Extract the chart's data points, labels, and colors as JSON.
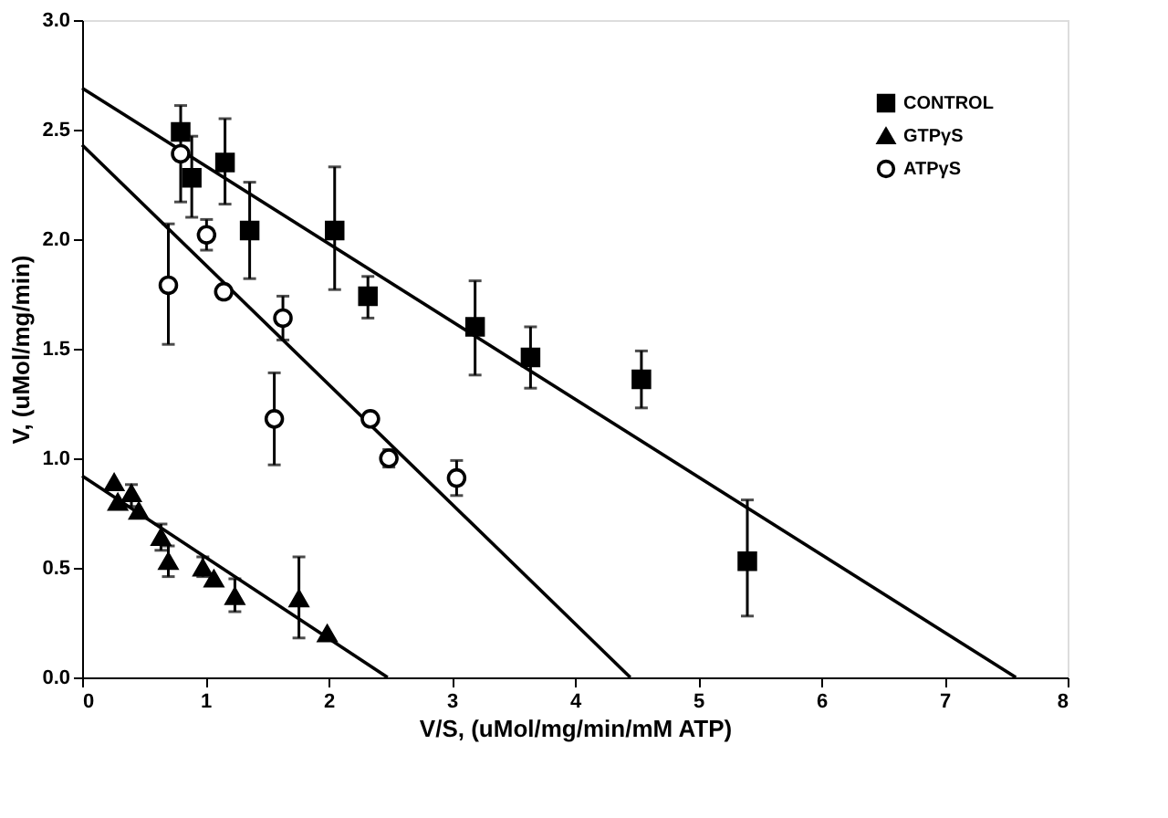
{
  "chart_data": {
    "type": "scatter",
    "xlabel": "V/S,   (uMol/mg/min/mM   ATP)",
    "ylabel": "V,    (uMol/mg/min)",
    "xlim": [
      0,
      8
    ],
    "xticks": [
      0,
      1,
      2,
      3,
      4,
      5,
      6,
      7,
      8
    ],
    "ylim": [
      0,
      3
    ],
    "yticks": [
      {
        "value": 0,
        "label": "0.0"
      },
      {
        "value": 0.5,
        "label": "0.5"
      },
      {
        "value": 1,
        "label": "1.0"
      },
      {
        "value": 1.5,
        "label": "1.5"
      },
      {
        "value": 2,
        "label": "2.0"
      },
      {
        "value": 2.5,
        "label": "2.5"
      },
      {
        "value": 3,
        "label": "3.0"
      }
    ],
    "grid": false,
    "legend": "top right",
    "series": [
      {
        "name": "CONTROL",
        "color": "#000000",
        "marker": "square",
        "x": [
          0.8,
          0.89,
          1.16,
          1.36,
          2.05,
          2.32,
          3.19,
          3.64,
          4.54,
          5.4
        ],
        "values": [
          2.49,
          2.28,
          2.35,
          2.04,
          2.04,
          1.74,
          1.6,
          1.46,
          1.36,
          0.53
        ],
        "errors": [
          [
            2.17,
            2.61
          ],
          [
            2.1,
            2.47
          ],
          [
            2.16,
            2.55
          ],
          [
            1.82,
            2.26
          ],
          [
            1.77,
            2.33
          ],
          [
            1.64,
            1.83
          ],
          [
            1.38,
            1.81
          ],
          [
            1.32,
            1.6
          ],
          [
            1.23,
            1.49
          ],
          [
            0.28,
            0.81
          ]
        ]
      },
      {
        "name": "GTPγS",
        "color": "#000000",
        "marker": "triangle",
        "x": [
          0.26,
          0.29,
          0.4,
          0.46,
          0.64,
          0.7,
          0.98,
          1.07,
          1.24,
          1.76,
          1.99
        ],
        "values": [
          0.89,
          0.8,
          0.84,
          0.76,
          0.64,
          0.53,
          0.5,
          0.45,
          0.37,
          0.36,
          0.2
        ],
        "errors": [
          null,
          null,
          [
            0.78,
            0.88
          ],
          null,
          [
            0.58,
            0.7
          ],
          [
            0.46,
            0.6
          ],
          [
            0.46,
            0.55
          ],
          null,
          [
            0.3,
            0.45
          ],
          [
            0.18,
            0.55
          ],
          null
        ]
      },
      {
        "name": "ATPγS",
        "color": "#000000",
        "marker": "circle",
        "x": [
          0.8,
          0.7,
          1.01,
          1.15,
          1.63,
          1.56,
          2.34,
          2.49,
          3.04
        ],
        "values": [
          2.39,
          1.79,
          2.02,
          1.76,
          1.64,
          1.18,
          1.18,
          1.0,
          0.91
        ],
        "errors": [
          null,
          [
            1.52,
            2.07
          ],
          [
            1.95,
            2.09
          ],
          null,
          [
            1.54,
            1.74
          ],
          [
            0.97,
            1.39
          ],
          null,
          [
            0.96,
            1.04
          ],
          [
            0.83,
            0.99
          ]
        ]
      },
      {
        "type": "line",
        "color": "#000000",
        "x": [
          0,
          7.58
        ],
        "values": [
          2.69,
          0
        ]
      },
      {
        "type": "line",
        "color": "#000000",
        "x": [
          0,
          4.45
        ],
        "values": [
          2.43,
          0
        ]
      },
      {
        "type": "line",
        "color": "#000000",
        "x": [
          0,
          2.48
        ],
        "values": [
          0.92,
          0
        ]
      }
    ]
  }
}
